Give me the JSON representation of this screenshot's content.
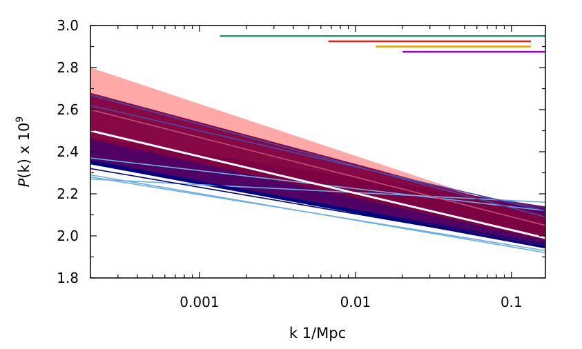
{
  "chart_data": {
    "type": "line",
    "title": "",
    "xlabel": "k 1/Mpc",
    "ylabel_prefix": "P",
    "ylabel_suffix": "(k) x 10",
    "ylabel_exponent": "9",
    "x_scale": "log",
    "xlim": [
      0.0002,
      0.165
    ],
    "ylim": [
      1.8,
      3.0
    ],
    "x_ticks": [
      {
        "value": 0.001,
        "label": "0.001"
      },
      {
        "value": 0.01,
        "label": "0.01"
      },
      {
        "value": 0.1,
        "label": "0.1"
      }
    ],
    "y_ticks": [
      {
        "value": 1.8,
        "label": "1.8"
      },
      {
        "value": 2.0,
        "label": "2.0"
      },
      {
        "value": 2.2,
        "label": "2.2"
      },
      {
        "value": 2.4,
        "label": "2.4"
      },
      {
        "value": 2.6,
        "label": "2.6"
      },
      {
        "value": 2.8,
        "label": "2.8"
      },
      {
        "value": 3.0,
        "label": "3.0"
      }
    ],
    "grid": false,
    "legend": "none",
    "bands": [
      {
        "color": "#ff9999",
        "opacity": 0.85,
        "x": [
          0.0002,
          0.165
        ],
        "upper": [
          2.8,
          2.08
        ],
        "lower": [
          2.36,
          1.96
        ]
      },
      {
        "color": "#000080",
        "opacity": 1.0,
        "x": [
          0.0002,
          0.165
        ],
        "upper": [
          2.46,
          2.13
        ],
        "lower": [
          2.34,
          1.94
        ]
      },
      {
        "color": "#5a0060",
        "opacity": 0.9,
        "x": [
          0.0002,
          0.165
        ],
        "upper": [
          2.47,
          2.14
        ],
        "lower": [
          2.36,
          1.95
        ]
      },
      {
        "color": "#800040",
        "opacity": 0.95,
        "x": [
          0.0002,
          0.165
        ],
        "upper": [
          2.68,
          2.1
        ],
        "lower": [
          2.46,
          1.98
        ]
      }
    ],
    "series": [
      {
        "color": "#6aaee8",
        "x": [
          0.0002,
          0.165
        ],
        "y": [
          2.29,
          1.92
        ]
      },
      {
        "color": "#6aaee8",
        "x": [
          0.0002,
          0.165
        ],
        "y": [
          2.28,
          1.93
        ]
      },
      {
        "color": "#6aaee8",
        "x": [
          0.0002,
          0.165
        ],
        "y": [
          2.27,
          2.16
        ]
      },
      {
        "color": "#6aaee8",
        "x": [
          0.0002,
          0.165
        ],
        "y": [
          2.37,
          2.12
        ]
      },
      {
        "color": "#000080",
        "x": [
          0.0002,
          0.165
        ],
        "y": [
          2.32,
          1.95
        ]
      },
      {
        "color": "#000080",
        "x": [
          0.0002,
          0.165
        ],
        "y": [
          2.35,
          1.96
        ]
      },
      {
        "color": "#4a4aa8",
        "x": [
          0.0002,
          0.165
        ],
        "y": [
          2.67,
          2.09
        ]
      },
      {
        "color": "#4a4aa8",
        "x": [
          0.0002,
          0.165
        ],
        "y": [
          2.62,
          2.12
        ]
      },
      {
        "color": "#c05070",
        "x": [
          0.0002,
          0.165
        ],
        "y": [
          2.6,
          2.05
        ]
      },
      {
        "color": "#ffffff",
        "width": 3,
        "x": [
          0.0002,
          0.165
        ],
        "y": [
          2.5,
          1.99
        ]
      }
    ],
    "ranges": [
      {
        "color": "#1a9e77",
        "x": [
          0.00135,
          0.165
        ],
        "y": 2.95
      },
      {
        "color": "#e41a1c",
        "x": [
          0.0067,
          0.133
        ],
        "y": 2.925
      },
      {
        "color": "#e69f00",
        "x": [
          0.0135,
          0.133
        ],
        "y": 2.9
      },
      {
        "color": "#9400d3",
        "x": [
          0.02,
          0.165
        ],
        "y": 2.875
      }
    ]
  }
}
